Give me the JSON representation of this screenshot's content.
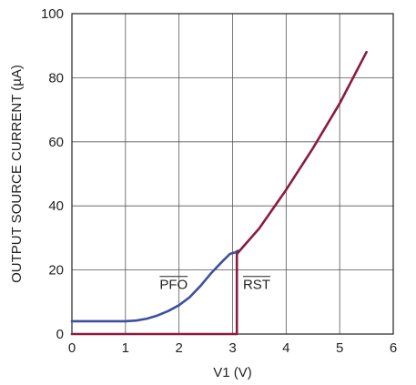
{
  "chart_data": {
    "type": "line",
    "xlabel": "V1 (V)",
    "ylabel": "OUTPUT SOURCE CURRENT (µA)",
    "xlim": [
      0,
      6
    ],
    "ylim": [
      0,
      100
    ],
    "x_ticks": [
      "0",
      "1",
      "2",
      "3",
      "4",
      "5",
      "6"
    ],
    "y_ticks": [
      "0",
      "20",
      "40",
      "60",
      "80",
      "100"
    ],
    "grid": true,
    "series": [
      {
        "name": "PFO",
        "color": "#3b4fa0",
        "x": [
          0,
          0.5,
          1.0,
          1.2,
          1.4,
          1.6,
          1.8,
          2.0,
          2.2,
          2.4,
          2.6,
          2.8,
          2.95,
          3.05,
          3.1
        ],
        "y": [
          4,
          4,
          4,
          4.2,
          4.8,
          5.8,
          7.2,
          9.0,
          11.5,
          15,
          19,
          22.5,
          25,
          25.5,
          26
        ]
      },
      {
        "name": "RST",
        "color": "#8b1a3f",
        "x": [
          0,
          1,
          2,
          3.08,
          3.08,
          3.5,
          4.0,
          4.5,
          5.0,
          5.5
        ],
        "y": [
          0,
          0,
          0,
          0,
          25,
          33,
          45,
          58,
          72,
          88
        ]
      }
    ],
    "annotations": [
      {
        "text": "PFO",
        "x": 1.9,
        "y": 14,
        "overline": true
      },
      {
        "text": "RST",
        "x": 3.45,
        "y": 14,
        "overline": true
      }
    ]
  }
}
